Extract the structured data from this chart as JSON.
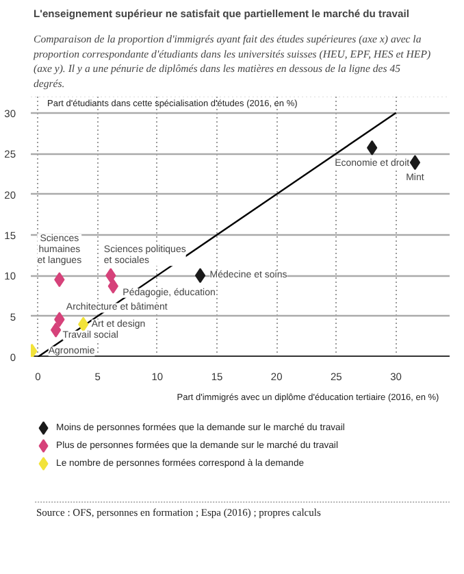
{
  "chart_data": {
    "type": "scatter",
    "title": "L'enseignement supérieur ne satisfait que partiellement le marché du travail",
    "subtitle": "Comparaison de la proportion d'immigrés ayant fait des études supérieures (axe x) avec la proportion correspondante d'étudiants dans les universités suisses (HEU, EPF, HES et HEP) (axe y). Il y a une pénurie de diplômés dans les matières en dessous de la ligne des 45 degrés.",
    "xlabel": "Part d'immigrés avec un diplôme d'éducation tertiaire (2016, en %)",
    "ylabel": "Part d'étudiants dans cette spécialisation d'études (2016, en %)",
    "xlim": [
      -0.6,
      34.5
    ],
    "ylim": [
      0,
      32
    ],
    "xticks": [
      0,
      5,
      10,
      15,
      20,
      25,
      30
    ],
    "yticks": [
      0,
      5,
      10,
      15,
      20,
      25,
      30
    ],
    "grid": true,
    "legend": "bottom",
    "series": [
      {
        "type": "line",
        "color": "#000000",
        "x": [
          0,
          30
        ],
        "values": [
          0,
          30
        ]
      },
      {
        "name": "Moins de personnes formées que la demande sur le marché du travail",
        "color": "#1a1a1a",
        "marker": "diamond",
        "x": [
          28.0,
          31.6,
          13.6
        ],
        "values": [
          25.7,
          23.9,
          10.0
        ]
      },
      {
        "name": "Plus de personnes formées que la demande sur le marché du travail",
        "color": "#d6427a",
        "marker": "diamond",
        "x": [
          1.8,
          6.1,
          6.3,
          1.8,
          1.5
        ],
        "values": [
          9.5,
          10.0,
          8.7,
          4.6,
          3.3
        ]
      },
      {
        "name": "Le nombre de personnes formées correspond à la demande",
        "color": "#f2e33a",
        "marker": "diamond",
        "x": [
          3.8,
          -0.5
        ],
        "values": [
          4.0,
          0.7
        ]
      }
    ],
    "annotations": [
      {
        "text": "Economie et droit",
        "x": 28.0,
        "y": 25.7
      },
      {
        "text": "Mint",
        "x": 31.6,
        "y": 23.9
      },
      {
        "text": "Médecine et soins",
        "x": 13.6,
        "y": 10.0
      },
      {
        "text": "Sciences\nhumaines\net langues",
        "x": 1.8,
        "y": 9.5
      },
      {
        "text": "Sciences politiques\net sociales",
        "x": 6.1,
        "y": 10.0
      },
      {
        "text": "Pédagogie, éducation",
        "x": 6.3,
        "y": 8.7
      },
      {
        "text": "Architecture et bâtiment",
        "x": 1.8,
        "y": 4.6
      },
      {
        "text": "Travail social",
        "x": 1.5,
        "y": 3.3
      },
      {
        "text": "Art et design",
        "x": 3.8,
        "y": 4.0
      },
      {
        "text": "Agronomie",
        "x": -0.5,
        "y": 0.7
      },
      "Source : OFS, personnes en formation ; Espa (2016) ; propres calculs"
    ]
  }
}
